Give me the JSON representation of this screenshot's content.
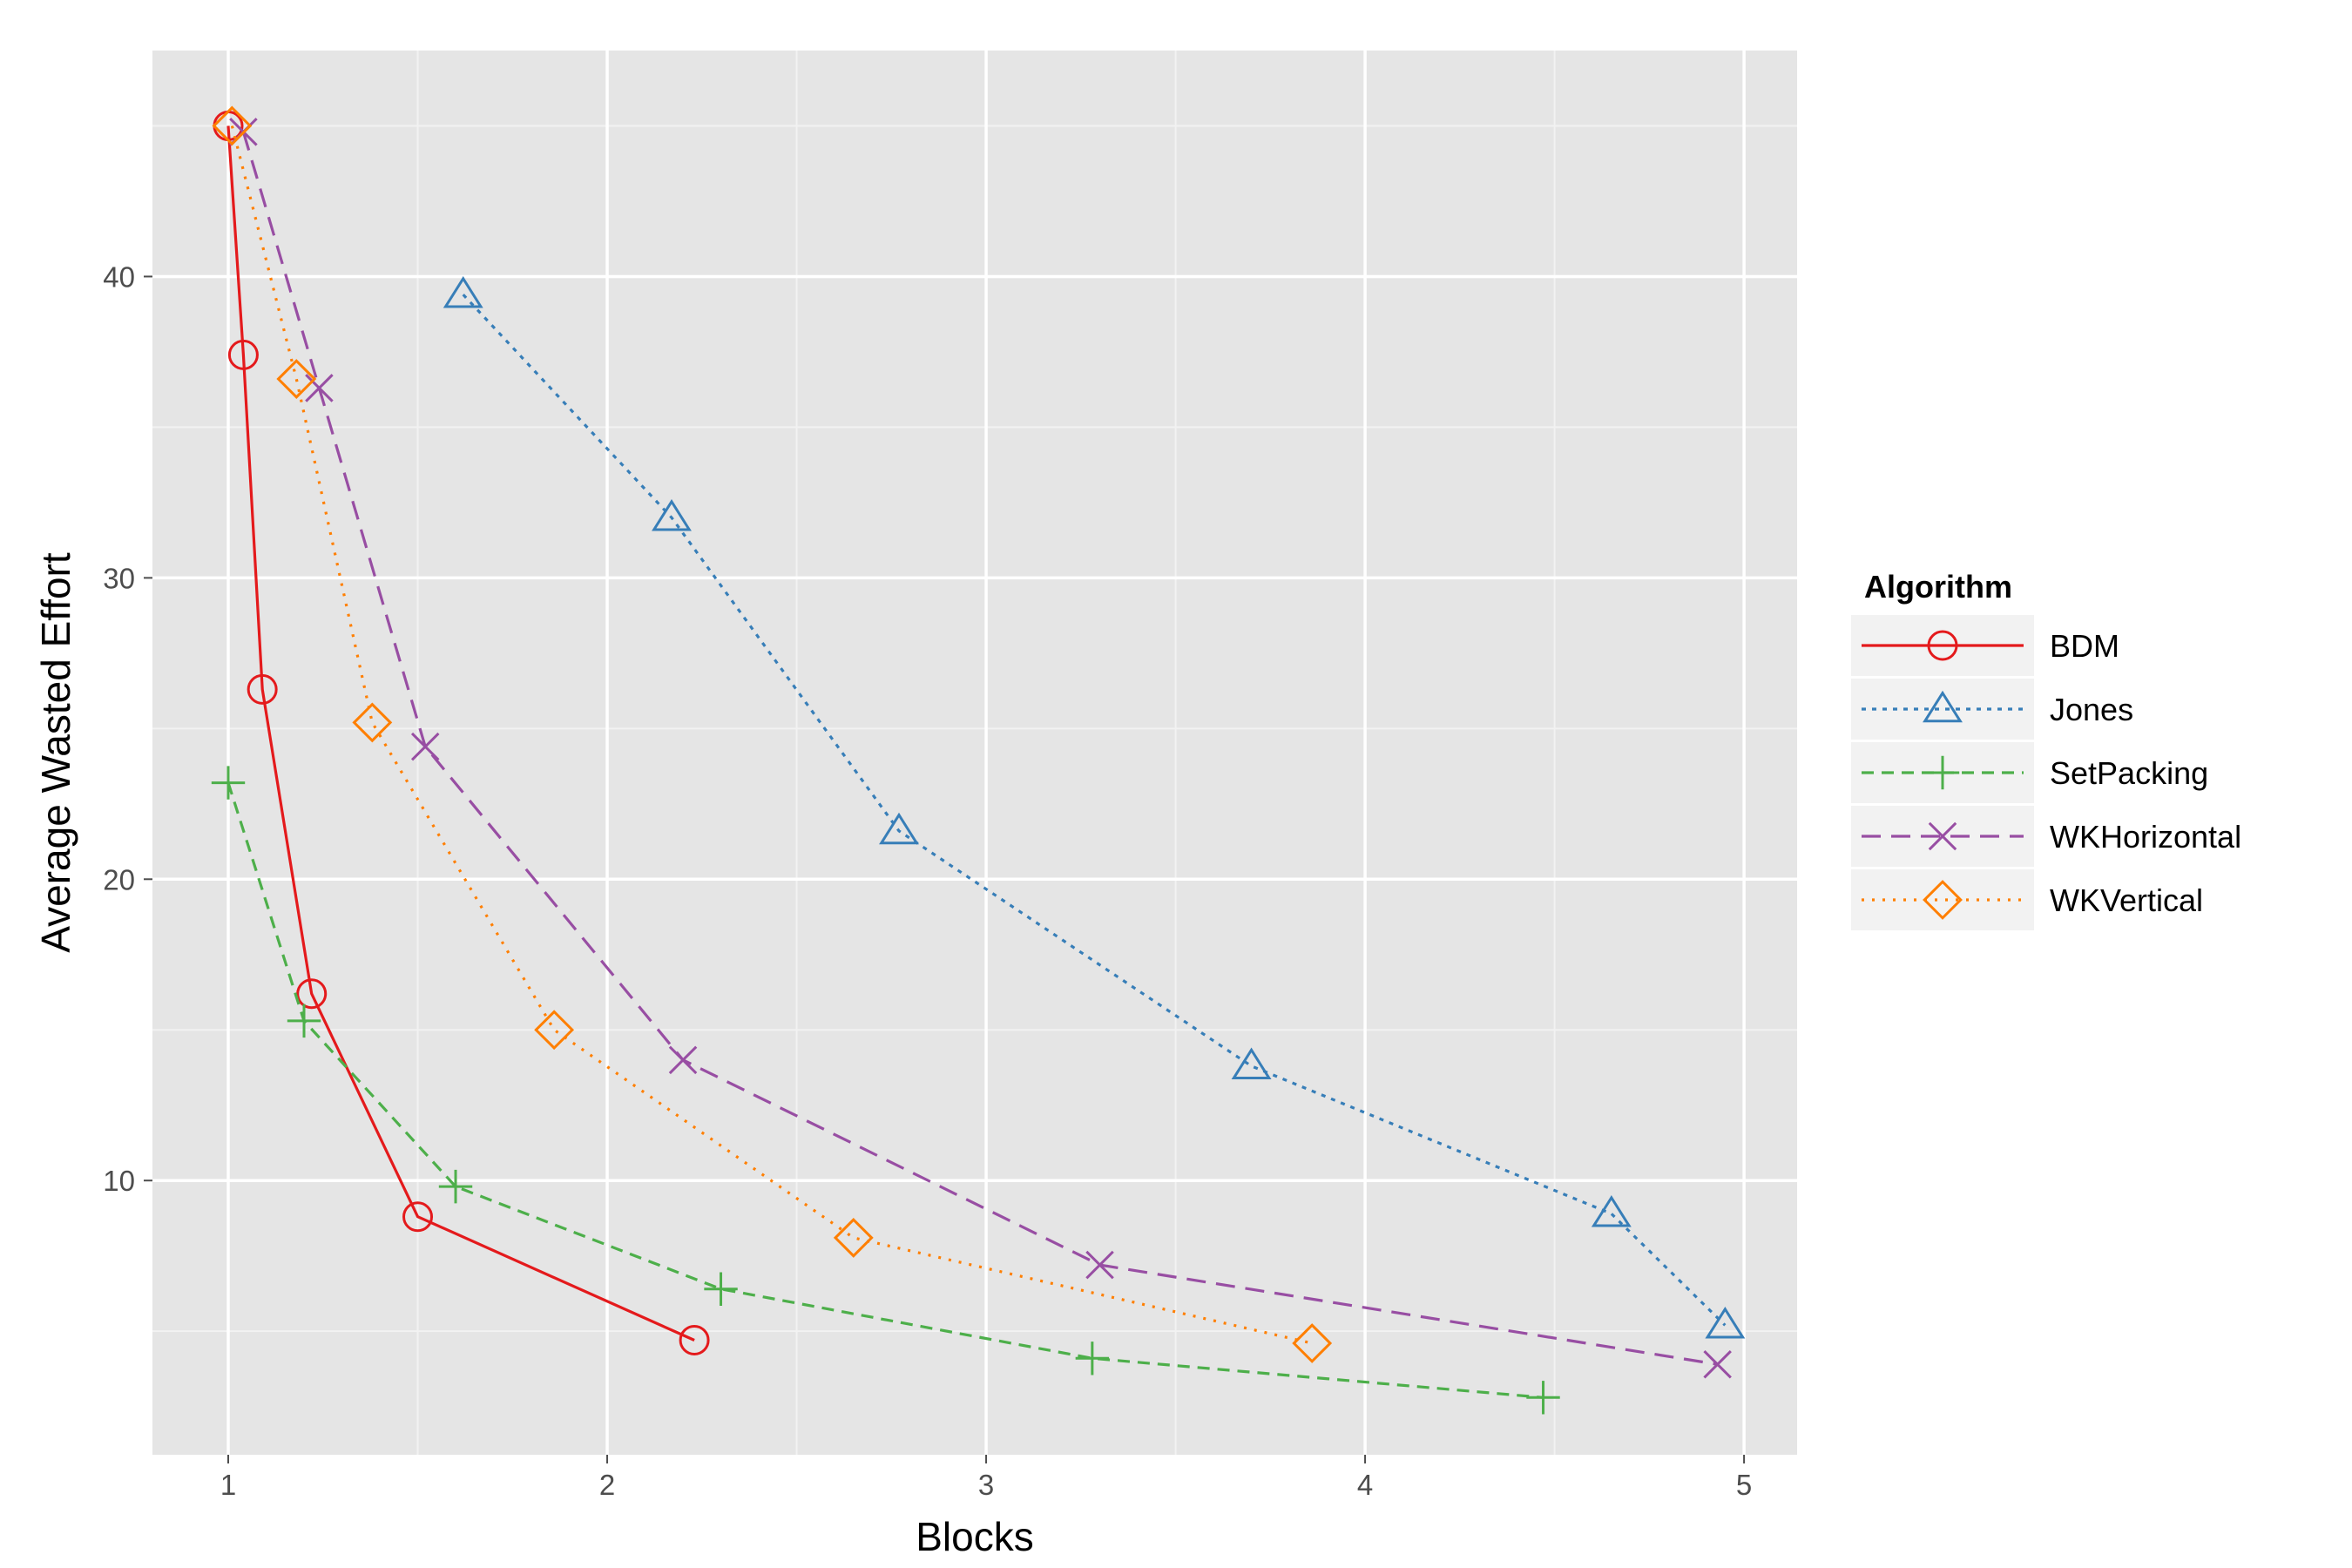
{
  "chart_data": {
    "type": "line",
    "xlabel": "Blocks",
    "ylabel": "Average Wasted Effort",
    "xlim": [
      0.8,
      5.14
    ],
    "ylim": [
      0.9,
      47.5
    ],
    "xticks": [
      1,
      2,
      3,
      4,
      5
    ],
    "yticks": [
      10,
      20,
      30,
      40
    ],
    "grid": true,
    "background": "#E5E5E5",
    "legend": {
      "title": "Algorithm",
      "position": "right"
    },
    "series": [
      {
        "name": "BDM",
        "color": "#E41A1C",
        "dash": "solid",
        "marker": "circle",
        "points": [
          [
            1.0,
            45.0
          ],
          [
            1.04,
            37.4
          ],
          [
            1.09,
            26.3
          ],
          [
            1.22,
            16.2
          ],
          [
            1.5,
            8.8
          ],
          [
            2.23,
            4.7
          ]
        ]
      },
      {
        "name": "Jones",
        "color": "#377EB8",
        "dash": "dotted-short",
        "marker": "triangle",
        "points": [
          [
            1.62,
            39.4
          ],
          [
            2.17,
            32.0
          ],
          [
            2.77,
            21.6
          ],
          [
            3.7,
            13.8
          ],
          [
            4.65,
            8.9
          ],
          [
            4.95,
            5.2
          ]
        ]
      },
      {
        "name": "SetPacking",
        "color": "#4DAF4A",
        "dash": "dashed",
        "marker": "plus",
        "points": [
          [
            1.0,
            23.2
          ],
          [
            1.2,
            15.3
          ],
          [
            1.6,
            9.8
          ],
          [
            2.3,
            6.4
          ],
          [
            3.28,
            4.1
          ],
          [
            4.47,
            2.8
          ]
        ]
      },
      {
        "name": "WKHorizontal",
        "color": "#984EA3",
        "dash": "longdash",
        "marker": "cross",
        "points": [
          [
            1.04,
            44.8
          ],
          [
            1.24,
            36.3
          ],
          [
            1.52,
            24.4
          ],
          [
            2.2,
            14.0
          ],
          [
            3.3,
            7.2
          ],
          [
            4.93,
            3.9
          ]
        ]
      },
      {
        "name": "WKVertical",
        "color": "#FF7F00",
        "dash": "dotted",
        "marker": "diamond",
        "points": [
          [
            1.01,
            45.0
          ],
          [
            1.18,
            36.6
          ],
          [
            1.38,
            25.2
          ],
          [
            1.86,
            15.0
          ],
          [
            2.65,
            8.1
          ],
          [
            3.86,
            4.6
          ]
        ]
      }
    ]
  }
}
